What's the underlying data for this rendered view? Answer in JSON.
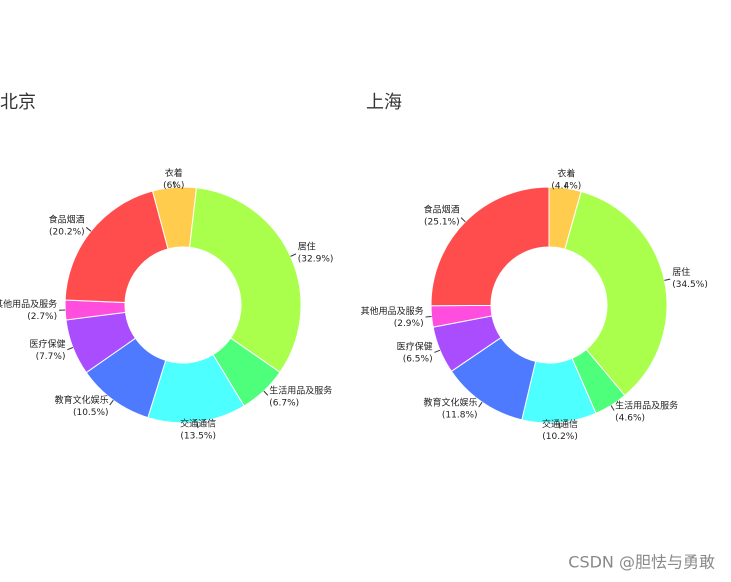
{
  "chart_data": [
    {
      "type": "pie",
      "title": "北京",
      "start_angle": -15,
      "categories": [
        "衣着",
        "居住",
        "生活用品及服务",
        "交通通信",
        "教育文化娱乐",
        "医疗保健",
        "其他用品及服务",
        "食品烟酒"
      ],
      "values": [
        6,
        32.9,
        6.7,
        13.5,
        10.5,
        7.7,
        2.7,
        20.2
      ],
      "value_labels": [
        "(6%)",
        "(32.9%)",
        "(6.7%)",
        "(13.5%)",
        "(10.5%)",
        "(7.7%)",
        "(2.7%)",
        "(20.2%)"
      ],
      "colors": [
        "#ffcc4d",
        "#aaff4d",
        "#4dff7a",
        "#4dffff",
        "#4d7aff",
        "#aa4dff",
        "#ff4ddd",
        "#ff4d4d"
      ]
    },
    {
      "type": "pie",
      "title": "上海",
      "start_angle": 0,
      "categories": [
        "衣着",
        "居住",
        "生活用品及服务",
        "交通通信",
        "教育文化娱乐",
        "医疗保健",
        "其他用品及服务",
        "食品烟酒"
      ],
      "values": [
        4.4,
        34.5,
        4.6,
        10.2,
        11.8,
        6.5,
        2.9,
        25.1
      ],
      "value_labels": [
        "(4.4%)",
        "(34.5%)",
        "(4.6%)",
        "(10.2%)",
        "(11.8%)",
        "(6.5%)",
        "(2.9%)",
        "(25.1%)"
      ],
      "colors": [
        "#ffcc4d",
        "#aaff4d",
        "#4dff7a",
        "#4dffff",
        "#4d7aff",
        "#aa4dff",
        "#ff4ddd",
        "#ff4d4d"
      ]
    }
  ],
  "watermark": "CSDN @胆怯与勇敢"
}
